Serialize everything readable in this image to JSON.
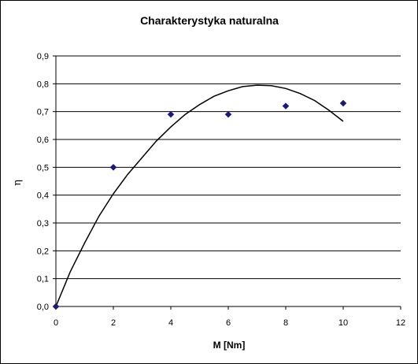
{
  "chart_data": {
    "type": "scatter",
    "title": "Charakterystyka naturalna",
    "xlabel": "M  [Nm]",
    "ylabel": "η",
    "xlim": [
      0,
      12
    ],
    "ylim": [
      0,
      0.9
    ],
    "xticks": [
      "0",
      "2",
      "4",
      "6",
      "8",
      "10",
      "12"
    ],
    "yticks": [
      "0,0",
      "0,1",
      "0,2",
      "0,3",
      "0,4",
      "0,5",
      "0,6",
      "0,7",
      "0,8",
      "0,9"
    ],
    "grid": "horizontal",
    "legend": "none",
    "series": [
      {
        "kind": "points",
        "marker": "diamond",
        "color": "#1a1a7a",
        "x": [
          0,
          2,
          4,
          6,
          8,
          10
        ],
        "y": [
          0.0,
          0.5,
          0.69,
          0.69,
          0.72,
          0.73
        ]
      },
      {
        "kind": "trendline",
        "color": "#000000",
        "x": [
          0,
          0.5,
          1,
          1.5,
          2,
          2.5,
          3,
          3.5,
          4,
          4.5,
          5,
          5.5,
          6,
          6.5,
          7,
          7.5,
          8,
          8.5,
          9,
          9.5,
          10
        ],
        "y": [
          0.0,
          0.125,
          0.228,
          0.325,
          0.405,
          0.475,
          0.535,
          0.595,
          0.645,
          0.69,
          0.725,
          0.755,
          0.775,
          0.79,
          0.795,
          0.793,
          0.783,
          0.765,
          0.74,
          0.705,
          0.665
        ]
      }
    ]
  }
}
